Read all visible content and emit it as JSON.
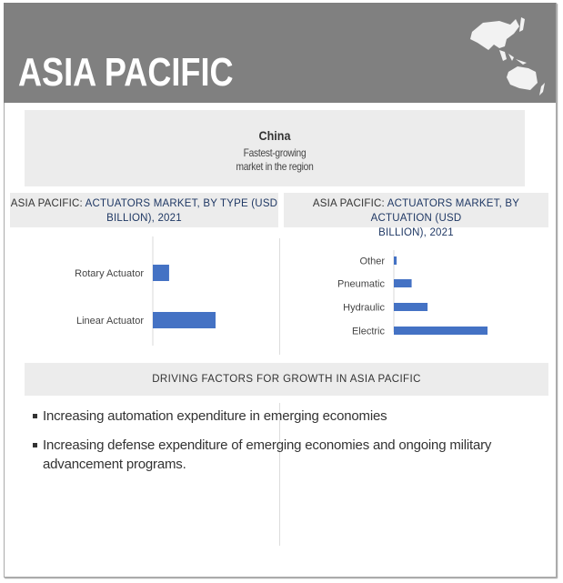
{
  "header": {
    "title": "ASIA PACIFIC",
    "map_icon": "asia-pacific-map-icon"
  },
  "highlight": {
    "country": "China",
    "line1": "Fastest-growing",
    "line2": "market in the region"
  },
  "chart_data": [
    {
      "type": "bar",
      "orientation": "horizontal",
      "title_prefix": "ASIA PACIFIC: ",
      "title_main": "ACTUATORS MARKET, BY TYPE (USD",
      "title_line2": "BILLION), 2021",
      "categories": [
        "Rotary Actuator",
        "Linear Actuator"
      ],
      "values": [
        26,
        100
      ],
      "value_note_relative": true,
      "color": "#4472c4",
      "grid": false
    },
    {
      "type": "bar",
      "orientation": "horizontal",
      "title_prefix": "ASIA PACIFIC: ",
      "title_main": "ACTUATORS MARKET, BY ACTUATION  (USD",
      "title_line2": "BILLION), 2021",
      "categories": [
        "Other",
        "Pneumatic",
        "Hydraulic",
        "Electric"
      ],
      "values": [
        3,
        19,
        36,
        100
      ],
      "value_note_relative": true,
      "color": "#4472c4",
      "grid": false
    }
  ],
  "drivers": {
    "title": "DRIVING FACTORS FOR GROWTH IN ASIA PACIFIC",
    "items": [
      "Increasing automation expenditure in emerging economies",
      "Increasing defense expenditure of emerging economies  and ongoing military advancement  programs."
    ]
  }
}
